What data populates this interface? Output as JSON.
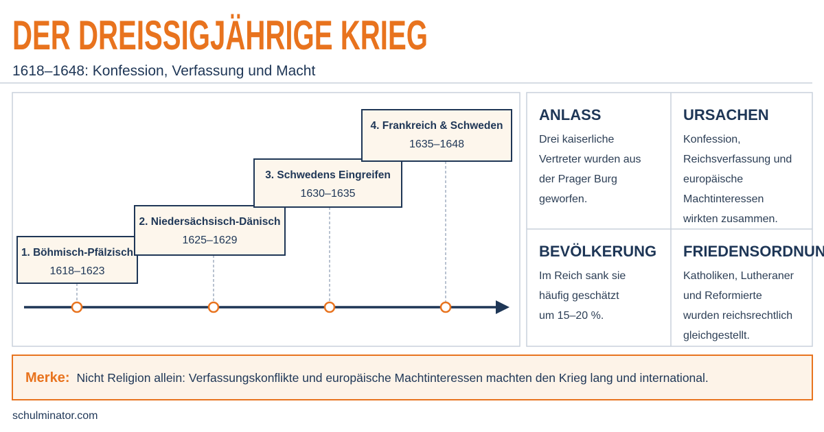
{
  "header": {
    "title": "DER DREISSIGJÄHRIGE KRIEG",
    "subtitle": "1618–1648: Konfession, Verfassung und Macht"
  },
  "timeline": {
    "phases": [
      {
        "label": "1. Böhmisch-Pfälzisch",
        "years": "1618–1623"
      },
      {
        "label": "2. Niedersächsisch-Dänisch",
        "years": "1625–1629"
      },
      {
        "label": "3. Schwedens Eingreifen",
        "years": "1630–1635"
      },
      {
        "label": "4. Frankreich & Schweden",
        "years": "1635–1648"
      }
    ]
  },
  "cards": [
    {
      "heading": "ANLASS",
      "lines": [
        "Drei kaiserliche",
        "Vertreter wurden aus",
        "der Prager Burg",
        "geworfen."
      ]
    },
    {
      "heading": "URSACHEN",
      "lines": [
        "Konfession,",
        "Reichsverfassung und",
        "europäische",
        "Machtinteressen",
        "wirkten zusammen."
      ]
    },
    {
      "heading": "BEVÖLKERUNG",
      "lines": [
        "Im Reich sank sie",
        "häufig geschätzt",
        "um 15–20 %."
      ]
    },
    {
      "heading": "FRIEDENSORDNUNG",
      "lines": [
        "Katholiken, Lutheraner",
        "und Reformierte",
        "wurden reichsrechtlich",
        "gleichgestellt."
      ]
    }
  ],
  "note": {
    "label": "Merke:",
    "text": "Nicht Religion allein: Verfassungskonflikte und europäische Machtinteressen machten den Krieg lang und international."
  },
  "footer": {
    "source": "schulminator.com"
  }
}
